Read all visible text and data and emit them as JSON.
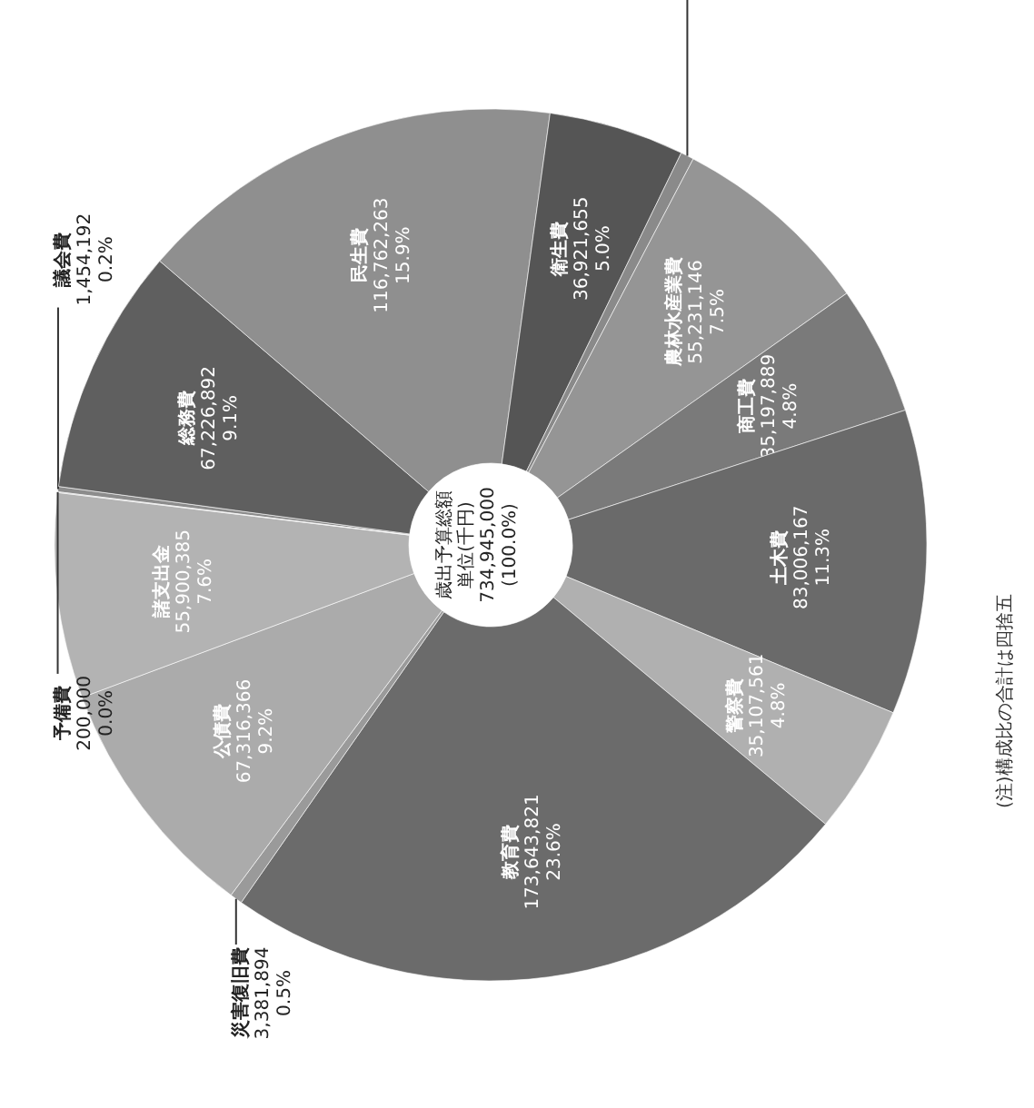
{
  "chart_data": {
    "type": "donut",
    "title": "歳出予算総額",
    "subtitle": "単位(千円)",
    "annotations": [
      "734,945,000",
      "(100.0%)",
      "(注)構成比の合計は四捨五"
    ],
    "categories": [
      "議会費",
      "総務費",
      "民生費",
      "衛生費",
      null,
      "農林水産業費",
      "商工費",
      "土木費",
      "警察費",
      "教育費",
      "災害復旧費",
      "公債費",
      "諸支出金",
      "予備費"
    ],
    "values": [
      1454192,
      67226892,
      116762263,
      36921655,
      3594769,
      55231146,
      35197889,
      83006167,
      35107561,
      173643821,
      3381894,
      67316366,
      55900385,
      200000
    ],
    "value_labels": [
      "1,454,192\n0.2%",
      "67,226,892\n9.1%",
      "116,762,263\n15.9%",
      "36,921,655\n5.0%",
      null,
      "55,231,146\n7.5%",
      "35,197,889\n4.8%",
      "83,006,167\n11.3%",
      "35,107,561\n4.8%",
      "173,643,821\n23.6%",
      "3,381,894\n0.5%",
      "67,316,366\n9.2%",
      "55,900,385\n7.6%",
      "200,000\n0.0%"
    ],
    "colors": [
      "#8c8c8c",
      "#5f5f5f",
      "#8f8f8f",
      "#555555",
      "#8a8a8a",
      "#959595",
      "#7a7a7a",
      "#6a6a6a",
      "#b0b0b0",
      "#6b6b6b",
      "#9a9a9a",
      "#ababab",
      "#b3b3b3",
      "#b3b3b3"
    ]
  }
}
